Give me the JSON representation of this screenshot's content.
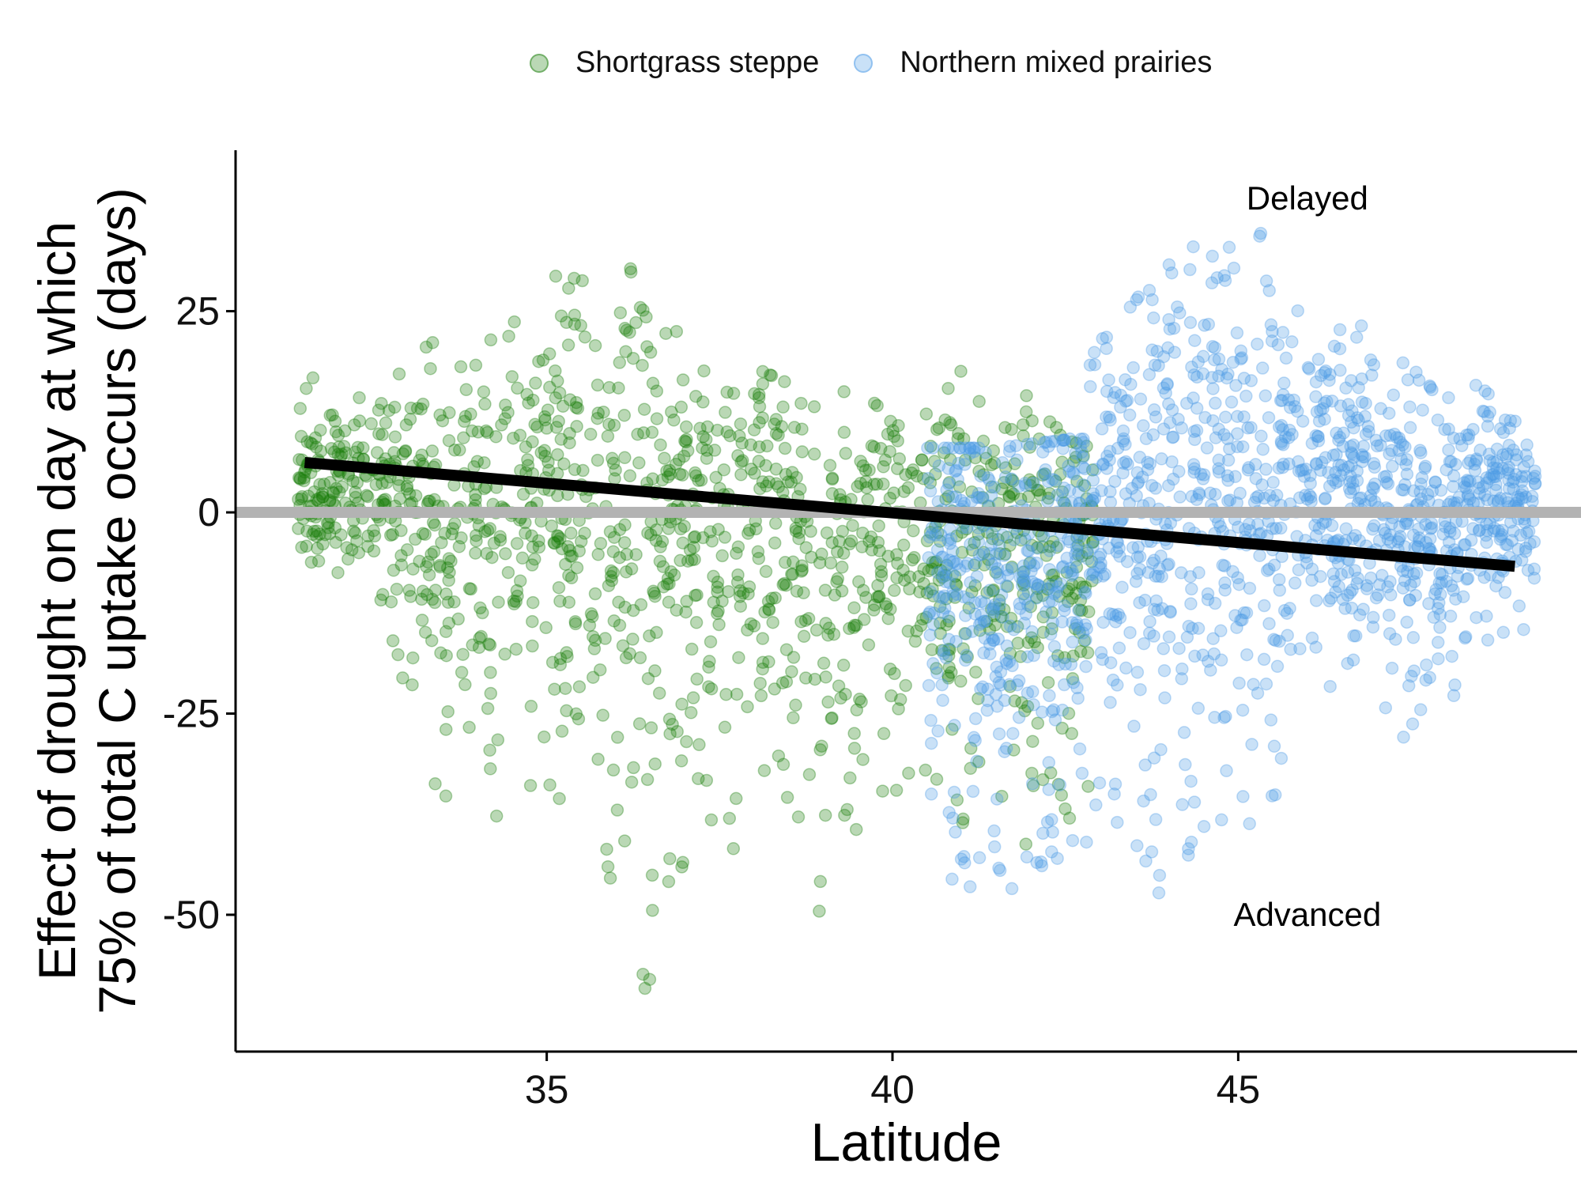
{
  "chart_data": {
    "type": "scatter",
    "xlabel": "Latitude",
    "ylabel_lines": [
      "Effect of drought on day at which",
      "75% of total C uptake occurs (days)"
    ],
    "xlim": [
      30.5,
      49.9
    ],
    "ylim": [
      -67,
      45
    ],
    "xticks": [
      35,
      40,
      45
    ],
    "yticks": [
      25,
      0,
      -25,
      -50
    ],
    "xtick_labels": [
      "35",
      "40",
      "45"
    ],
    "ytick_labels": [
      "25",
      "0",
      "-25",
      "-50"
    ],
    "legend_position": "top",
    "grid": false,
    "series": [
      {
        "name": "Shortgrass steppe",
        "color": "#1a7f0b",
        "opacity": 0.3,
        "x_range": [
          31.4,
          42.9
        ],
        "envelope_x": [
          31.5,
          32.5,
          33.5,
          34.5,
          35.0,
          35.5,
          36.0,
          36.5,
          37.0,
          37.5,
          38.0,
          38.5,
          39.0,
          39.5,
          40.0,
          40.5,
          41.0,
          41.5,
          42.0,
          42.5,
          42.9
        ],
        "envelope_upper": [
          17,
          16,
          22,
          24,
          31,
          30,
          29,
          32,
          25,
          20,
          18,
          16,
          15,
          15,
          12,
          18,
          18,
          11,
          15,
          9,
          8
        ],
        "envelope_lower": [
          -7,
          -8,
          -40,
          -40,
          -35,
          -40,
          -53,
          -62,
          -45,
          -50,
          -36,
          -40,
          -56,
          -42,
          -38,
          -43,
          -50,
          -35,
          -46,
          -40,
          -35
        ]
      },
      {
        "name": "Northern mixed prairies",
        "color": "#4d9be6",
        "opacity": 0.3,
        "x_range": [
          40.5,
          49.3
        ],
        "envelope_x": [
          40.5,
          41.5,
          42.5,
          43.0,
          43.5,
          44.0,
          44.5,
          45.0,
          45.5,
          46.0,
          46.5,
          47.0,
          47.5,
          48.0,
          48.5,
          49.0,
          49.3
        ],
        "envelope_upper": [
          8,
          8,
          9,
          22,
          26,
          33,
          33,
          39,
          33,
          28,
          25,
          22,
          18,
          14,
          17,
          12,
          8
        ],
        "envelope_lower": [
          -44,
          -49,
          -51,
          -40,
          -47,
          -48,
          -45,
          -40,
          -38,
          -23,
          -24,
          -25,
          -29,
          -29,
          -16,
          -16,
          -15
        ]
      }
    ],
    "trend_line": {
      "x": [
        31.5,
        49.0
      ],
      "y": [
        6.2,
        -6.7
      ],
      "color": "#000000"
    },
    "reference_line": {
      "y": 0,
      "color": "#b3b3b3"
    },
    "annotations": [
      {
        "text": "Delayed",
        "x": 46.0,
        "y": 39
      },
      {
        "text": "Advanced",
        "x": 46.0,
        "y": -50
      }
    ]
  }
}
